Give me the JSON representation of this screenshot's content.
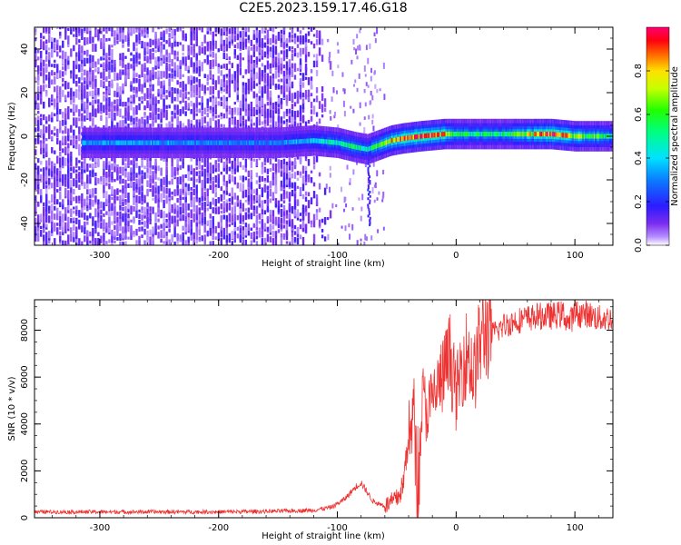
{
  "title": "C2E5.2023.159.17.46.G18",
  "colors": {
    "snr_line": "#ee3333",
    "spectrogram_base": "#7b2cf0",
    "frame": "#000000"
  },
  "chart_data": [
    {
      "type": "heatmap",
      "xlabel": "Height of straight line (km)",
      "ylabel": "Frequency (Hz)",
      "xlim": [
        -355,
        132
      ],
      "ylim": [
        -50,
        50
      ],
      "xticks": [
        "-300",
        "-200",
        "-100",
        "0",
        "100"
      ],
      "xtick_values": [
        -300,
        -200,
        -100,
        0,
        100
      ],
      "yticks": [
        "-40",
        "-20",
        "0",
        "20",
        "40"
      ],
      "ytick_values": [
        -40,
        -20,
        0,
        20,
        40
      ],
      "colorbar": {
        "label": "Normalized spectral amplitude",
        "range": [
          0,
          1
        ],
        "ticks": [
          "0.0",
          "0.2",
          "0.4",
          "0.6",
          "0.8"
        ],
        "tick_values": [
          0.0,
          0.2,
          0.4,
          0.6,
          0.8
        ],
        "colormap": "hsv-like (purple-blue-cyan-green-yellow-red-magenta)"
      },
      "ridge": {
        "description": "narrow band near 0 Hz",
        "x": [
          -310,
          -260,
          -200,
          -150,
          -120,
          -100,
          -85,
          -75,
          -65,
          -55,
          -45,
          -30,
          -10,
          0,
          40,
          80,
          100,
          132
        ],
        "frequency": [
          -3,
          -3,
          -3,
          -3,
          -2,
          -3,
          -5,
          -6,
          -4,
          -2,
          -1,
          0,
          1,
          1,
          1,
          1,
          0,
          0
        ],
        "amplitude": [
          0.35,
          0.35,
          0.3,
          0.3,
          0.4,
          0.5,
          0.55,
          0.5,
          0.6,
          0.8,
          0.9,
          0.95,
          0.85,
          0.55,
          0.55,
          0.95,
          0.7,
          0.5
        ]
      },
      "noise_region_x": [
        -355,
        -110
      ],
      "grid": false
    },
    {
      "type": "line",
      "xlabel": "Height of straight line (km)",
      "ylabel": "SNR (10 * v/v)",
      "xlim": [
        -355,
        132
      ],
      "ylim": [
        0,
        9300
      ],
      "xticks": [
        "-300",
        "-200",
        "-100",
        "0",
        "100"
      ],
      "xtick_values": [
        -300,
        -200,
        -100,
        0,
        100
      ],
      "yticks": [
        "0",
        "2000",
        "4000",
        "6000",
        "8000"
      ],
      "ytick_values": [
        0,
        2000,
        4000,
        6000,
        8000
      ],
      "series": [
        {
          "x": [
            -355,
            -300,
            -250,
            -200,
            -150,
            -120,
            -105,
            -95,
            -90,
            -85,
            -80,
            -75,
            -70,
            -65,
            -60,
            -55,
            -50,
            -45,
            -42,
            -40,
            -38,
            -36,
            -34,
            -32,
            -30,
            -28,
            -25,
            -20,
            -15,
            -10,
            -5,
            0,
            5,
            10,
            15,
            20,
            25,
            30,
            40,
            50,
            60,
            70,
            80,
            90,
            95,
            100,
            110,
            120,
            132
          ],
          "y": [
            250,
            250,
            250,
            250,
            280,
            320,
            450,
            750,
            1000,
            1300,
            1500,
            1100,
            700,
            600,
            500,
            650,
            800,
            1300,
            2500,
            4000,
            3200,
            5000,
            2500,
            600,
            3500,
            5200,
            4500,
            5000,
            5600,
            6200,
            6900,
            5200,
            6600,
            7100,
            6000,
            7500,
            8100,
            7800,
            8200,
            8400,
            8500,
            8600,
            8600,
            8700,
            8300,
            8700,
            8700,
            8500,
            8500
          ]
        }
      ],
      "grid": false
    }
  ]
}
